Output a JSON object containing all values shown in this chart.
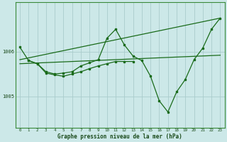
{
  "bg_color": "#cce8e8",
  "grid_color": "#aacccc",
  "line_color": "#1a6b1a",
  "x_ticks": [
    0,
    1,
    2,
    3,
    4,
    5,
    6,
    7,
    8,
    9,
    10,
    11,
    12,
    13,
    14,
    15,
    16,
    17,
    18,
    19,
    20,
    21,
    22,
    23
  ],
  "ylim": [
    1004.3,
    1007.1
  ],
  "yticks": [
    1005,
    1006
  ],
  "xlabel": "Graphe pression niveau de la mer (hPa)",
  "trend_line1": {
    "x": [
      0,
      23
    ],
    "y": [
      1005.82,
      1006.75
    ]
  },
  "trend_line2": {
    "x": [
      0,
      23
    ],
    "y": [
      1005.73,
      1005.92
    ]
  },
  "series_main": {
    "x": [
      0,
      1,
      2,
      3,
      4,
      5,
      6,
      7,
      8,
      9,
      10,
      11,
      12,
      13,
      14,
      15,
      16,
      17,
      18,
      19,
      20,
      21,
      22,
      23
    ],
    "y": [
      1006.1,
      1005.8,
      1005.73,
      1005.55,
      1005.5,
      1005.52,
      1005.55,
      1005.68,
      1005.75,
      1005.82,
      1006.3,
      1006.5,
      1006.15,
      1005.9,
      1005.8,
      1005.45,
      1004.9,
      1004.65,
      1005.1,
      1005.38,
      1005.82,
      1006.08,
      1006.5,
      1006.75
    ]
  },
  "series_left": {
    "x": [
      1,
      2,
      3,
      4,
      5,
      6,
      7,
      8,
      9,
      10,
      11,
      12,
      13
    ],
    "y": [
      1005.8,
      1005.73,
      1005.52,
      1005.48,
      1005.45,
      1005.5,
      1005.55,
      1005.62,
      1005.68,
      1005.73,
      1005.78,
      1005.78,
      1005.78
    ]
  }
}
